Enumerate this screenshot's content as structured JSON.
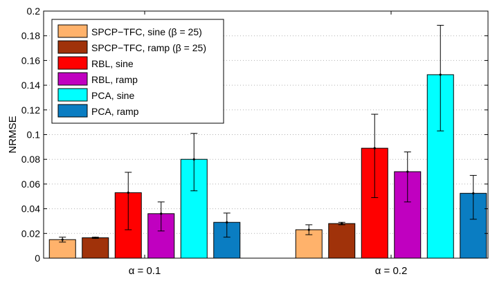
{
  "chart_data": {
    "type": "bar",
    "xlabel": "",
    "ylabel": "NRMSE",
    "ylim": [
      0,
      0.2
    ],
    "yticks": [
      "0",
      "0.02",
      "0.04",
      "0.06",
      "0.08",
      "0.1",
      "0.12",
      "0.14",
      "0.16",
      "0.18",
      "0.2"
    ],
    "grid": "dotted",
    "legend_position": "top-left",
    "categories": [
      "α = 0.1",
      "α = 0.2"
    ],
    "series": [
      {
        "name": "SPCP−TFC, sine  (β = 25)",
        "color": "#ffb26b",
        "values": [
          0.015,
          0.023
        ],
        "err_low": [
          0.013,
          0.019
        ],
        "err_high": [
          0.017,
          0.027
        ]
      },
      {
        "name": "SPCP−TFC, ramp (β = 25)",
        "color": "#a0320a",
        "values": [
          0.0165,
          0.028
        ],
        "err_low": [
          0.016,
          0.027
        ],
        "err_high": [
          0.017,
          0.029
        ]
      },
      {
        "name": "RBL, sine",
        "color": "#ff0000",
        "values": [
          0.053,
          0.089
        ],
        "err_low": [
          0.023,
          0.049
        ],
        "err_high": [
          0.0695,
          0.1165
        ]
      },
      {
        "name": "RBL, ramp",
        "color": "#c000c0",
        "values": [
          0.036,
          0.07
        ],
        "err_low": [
          0.022,
          0.0455
        ],
        "err_high": [
          0.0455,
          0.086
        ]
      },
      {
        "name": "PCA, sine",
        "color": "#00ffff",
        "values": [
          0.08,
          0.1485
        ],
        "err_low": [
          0.0545,
          0.103
        ],
        "err_high": [
          0.101,
          0.1885
        ]
      },
      {
        "name": "PCA, ramp",
        "color": "#0a7dc2",
        "values": [
          0.029,
          0.0525
        ],
        "err_low": [
          0.017,
          0.0315
        ],
        "err_high": [
          0.0365,
          0.067
        ]
      }
    ]
  }
}
